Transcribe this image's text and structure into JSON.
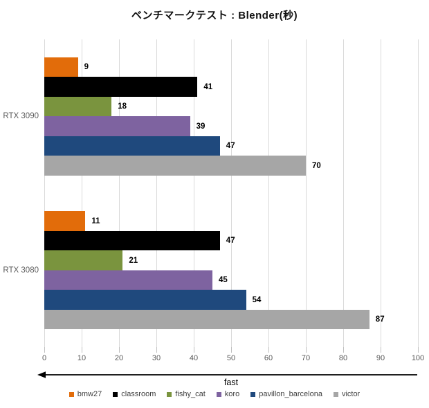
{
  "chart_data": {
    "type": "bar",
    "orientation": "horizontal",
    "title": "ベンチマークテスト : Blender(秒)",
    "categories": [
      "RTX 3090",
      "RTX 3080"
    ],
    "series": [
      {
        "name": "bmw27",
        "color": "#E26C0A",
        "values": [
          9,
          11
        ]
      },
      {
        "name": "classroom",
        "color": "#000000",
        "values": [
          41,
          47
        ]
      },
      {
        "name": "fishy_cat",
        "color": "#7A943E",
        "values": [
          18,
          21
        ]
      },
      {
        "name": "koro",
        "color": "#7E63A0",
        "values": [
          39,
          45
        ]
      },
      {
        "name": "pavillon_barcelona",
        "color": "#1F497D",
        "values": [
          47,
          54
        ]
      },
      {
        "name": "victor",
        "color": "#A6A6A6",
        "values": [
          70,
          87
        ]
      }
    ],
    "value_labels": true,
    "xlabel": "fast",
    "xlim": [
      0,
      100
    ],
    "xticks": [
      0,
      10,
      20,
      30,
      40,
      50,
      60,
      70,
      80,
      90,
      100
    ],
    "grid": "vertical",
    "legend_position": "bottom",
    "axis_arrow_direction": "left",
    "style": {
      "grid_color": "#D9D9D9",
      "tick_color": "#BFBFBF",
      "axis_text_color": "#595959",
      "legend_text_color": "#404040",
      "value_label_color": "#000000",
      "arrow_color": "#000000"
    }
  }
}
